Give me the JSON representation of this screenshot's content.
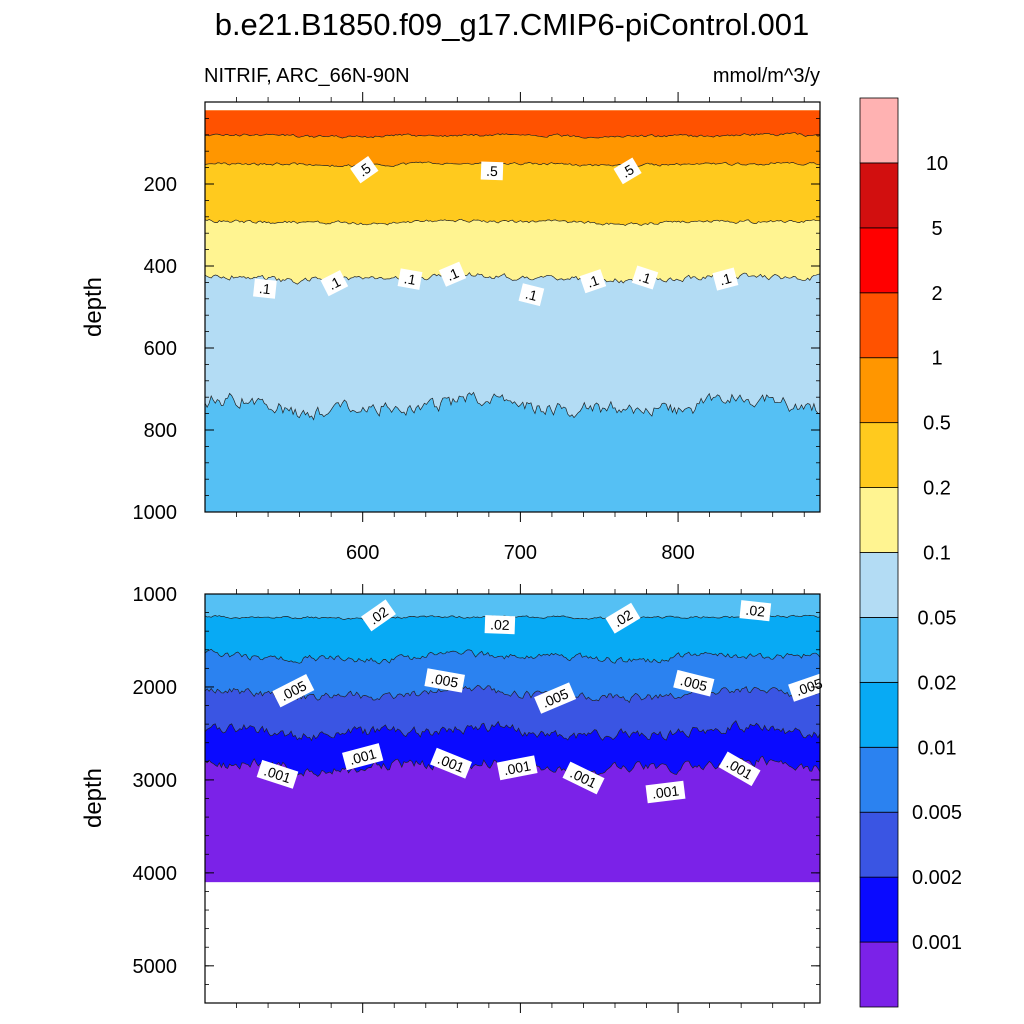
{
  "chart_data": {
    "type": "contour",
    "title": "b.e21.B1850.f09_g17.CMIP6-piControl.001",
    "variable_label": "NITRIF, ARC_66N-90N",
    "units_label": "mmol/m^3/y",
    "colorbar": {
      "levels": [
        "0.001",
        "0.002",
        "0.005",
        "0.01",
        "0.02",
        "0.05",
        "0.1",
        "0.2",
        "0.5",
        "1",
        "2",
        "5",
        "10"
      ],
      "colors": [
        "#7b22e8",
        "#0a0aff",
        "#3a55e3",
        "#2b82f0",
        "#08aaf4",
        "#55c0f4",
        "#b3dcf4",
        "#fff491",
        "#ffca1e",
        "#ff9600",
        "#ff5200",
        "#ff0000",
        "#d20f0f",
        "#ffb2b2"
      ]
    },
    "x": {
      "range": [
        500,
        890
      ],
      "ticks": [
        600,
        700,
        800
      ],
      "tick_labels": [
        "600",
        "700",
        "800"
      ]
    },
    "panels": [
      {
        "name": "upper",
        "ylabel": "depth",
        "ylim": [
          0,
          1000
        ],
        "yticks": [
          200,
          400,
          600,
          800,
          1000
        ],
        "ytick_labels": [
          "200",
          "400",
          "600",
          "800",
          "1000"
        ],
        "top_depth": 20,
        "bottom_fill": "#55c0f4",
        "bands": [
          {
            "fill": "#ff5200",
            "boundary_mean": 82,
            "amp": 10
          },
          {
            "fill": "#ff9600",
            "boundary_mean": 152,
            "amp": 10
          },
          {
            "fill": "#ffca1e",
            "boundary_mean": 293,
            "amp": 12
          },
          {
            "fill": "#fff491",
            "boundary_mean": 430,
            "amp": 22
          },
          {
            "fill": "#b3dcf4",
            "boundary_mean": 740,
            "amp": 55
          }
        ],
        "contour_labels": [
          {
            "text": ".5",
            "x": 601,
            "depth": 165
          },
          {
            "text": ".5",
            "x": 682,
            "depth": 168
          },
          {
            "text": ".5",
            "x": 768,
            "depth": 168
          },
          {
            "text": ".1",
            "x": 538,
            "depth": 455
          },
          {
            "text": ".1",
            "x": 582,
            "depth": 442
          },
          {
            "text": ".1",
            "x": 630,
            "depth": 432
          },
          {
            "text": ".1",
            "x": 657,
            "depth": 420
          },
          {
            "text": ".1",
            "x": 707,
            "depth": 470
          },
          {
            "text": ".1",
            "x": 746,
            "depth": 437
          },
          {
            "text": ".1",
            "x": 779,
            "depth": 428
          },
          {
            "text": ".1",
            "x": 830,
            "depth": 432
          }
        ]
      },
      {
        "name": "lower",
        "ylabel": "depth",
        "ylim": [
          1000,
          5400
        ],
        "yticks": [
          1000,
          2000,
          3000,
          4000,
          5000
        ],
        "ytick_labels": [
          "1000",
          "2000",
          "3000",
          "4000",
          "5000"
        ],
        "data_bottom": 4100,
        "bottom_fill": "#7b22e8",
        "bands": [
          {
            "fill": "#55c0f4",
            "boundary_mean": 1250,
            "amp": 40
          },
          {
            "fill": "#08aaf4",
            "boundary_mean": 1680,
            "amp": 110
          },
          {
            "fill": "#2b82f0",
            "boundary_mean": 2080,
            "amp": 140
          },
          {
            "fill": "#3a55e3",
            "boundary_mean": 2480,
            "amp": 170
          },
          {
            "fill": "#0a0aff",
            "boundary_mean": 2850,
            "amp": 170
          }
        ],
        "contour_labels": [
          {
            "text": ".02",
            "x": 610,
            "depth": 1230
          },
          {
            "text": ".02",
            "x": 687,
            "depth": 1330
          },
          {
            "text": ".02",
            "x": 765,
            "depth": 1260
          },
          {
            "text": ".02",
            "x": 849,
            "depth": 1180
          },
          {
            "text": ".005",
            "x": 556,
            "depth": 2040
          },
          {
            "text": ".005",
            "x": 652,
            "depth": 1930
          },
          {
            "text": ".005",
            "x": 722,
            "depth": 2120
          },
          {
            "text": ".005",
            "x": 810,
            "depth": 1960
          },
          {
            "text": ".005",
            "x": 883,
            "depth": 2000
          },
          {
            "text": ".001",
            "x": 546,
            "depth": 2940
          },
          {
            "text": ".001",
            "x": 600,
            "depth": 2750
          },
          {
            "text": ".001",
            "x": 656,
            "depth": 2820
          },
          {
            "text": ".001",
            "x": 698,
            "depth": 2870
          },
          {
            "text": ".001",
            "x": 740,
            "depth": 2980
          },
          {
            "text": ".001",
            "x": 792,
            "depth": 3130
          },
          {
            "text": ".001",
            "x": 839,
            "depth": 2880
          }
        ]
      }
    ]
  }
}
